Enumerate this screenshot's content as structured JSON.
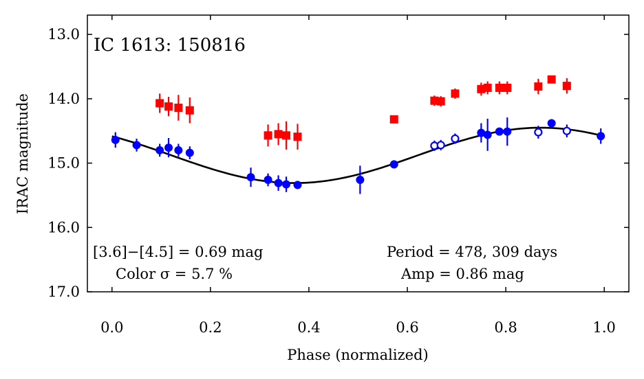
{
  "chart_data": {
    "type": "scatter",
    "title": "",
    "annotation_title": "IC 1613: 150816",
    "xlabel": "Phase (normalized)",
    "ylabel": "IRAC magnitude",
    "xlim": [
      -0.05,
      1.05
    ],
    "ylim": [
      17.0,
      12.7
    ],
    "y_inverted": true,
    "grid": false,
    "x_ticks": [
      0.0,
      0.2,
      0.4,
      0.6,
      0.8,
      1.0
    ],
    "x_tick_labels": [
      "0.0",
      "0.2",
      "0.4",
      "0.6",
      "0.8",
      "1.0"
    ],
    "y_ticks": [
      13.0,
      14.0,
      15.0,
      16.0,
      17.0
    ],
    "y_tick_labels": [
      "13.0",
      "14.0",
      "15.0",
      "16.0",
      "17.0"
    ],
    "annotations": {
      "color_line": "[3.6]−[4.5] = 0.69 mag",
      "color_sigma": "Color σ = 5.7 %",
      "period": "Period = 478, 309 days",
      "amp": "Amp = 0.86 mag"
    },
    "colors": {
      "red": "#ff0000",
      "blue": "#0000ff",
      "fit": "#000000"
    },
    "series": [
      {
        "marker": "square",
        "color": "#ff0000",
        "filled": true,
        "points": [
          {
            "x": 0.097,
            "y": 14.07,
            "err": 0.15
          },
          {
            "x": 0.115,
            "y": 14.12,
            "err": 0.15
          },
          {
            "x": 0.135,
            "y": 14.14,
            "err": 0.2
          },
          {
            "x": 0.158,
            "y": 14.18,
            "err": 0.2
          },
          {
            "x": 0.317,
            "y": 14.57,
            "err": 0.17
          },
          {
            "x": 0.338,
            "y": 14.55,
            "err": 0.17
          },
          {
            "x": 0.354,
            "y": 14.57,
            "err": 0.22
          },
          {
            "x": 0.377,
            "y": 14.59,
            "err": 0.2
          },
          {
            "x": 0.573,
            "y": 14.32,
            "err": 0.05
          },
          {
            "x": 0.655,
            "y": 14.03,
            "err": 0.08
          },
          {
            "x": 0.668,
            "y": 14.04,
            "err": 0.08
          },
          {
            "x": 0.697,
            "y": 13.92,
            "err": 0.08
          },
          {
            "x": 0.75,
            "y": 13.85,
            "err": 0.1
          },
          {
            "x": 0.763,
            "y": 13.83,
            "err": 0.1
          },
          {
            "x": 0.787,
            "y": 13.83,
            "err": 0.1
          },
          {
            "x": 0.803,
            "y": 13.83,
            "err": 0.1
          },
          {
            "x": 0.866,
            "y": 13.81,
            "err": 0.12
          },
          {
            "x": 0.893,
            "y": 13.7,
            "err": 0.04
          },
          {
            "x": 0.924,
            "y": 13.8,
            "err": 0.12
          }
        ]
      },
      {
        "marker": "circle",
        "color": "#0000ff",
        "filled": true,
        "points": [
          {
            "x": 0.007,
            "y": 14.64,
            "err": 0.12
          },
          {
            "x": 0.05,
            "y": 14.72,
            "err": 0.1
          },
          {
            "x": 0.097,
            "y": 14.8,
            "err": 0.1
          },
          {
            "x": 0.115,
            "y": 14.76,
            "err": 0.15
          },
          {
            "x": 0.135,
            "y": 14.8,
            "err": 0.1
          },
          {
            "x": 0.158,
            "y": 14.84,
            "err": 0.1
          },
          {
            "x": 0.282,
            "y": 15.22,
            "err": 0.15
          },
          {
            "x": 0.317,
            "y": 15.26,
            "err": 0.1
          },
          {
            "x": 0.338,
            "y": 15.31,
            "err": 0.12
          },
          {
            "x": 0.354,
            "y": 15.33,
            "err": 0.12
          },
          {
            "x": 0.377,
            "y": 15.34,
            "err": 0.05
          },
          {
            "x": 0.504,
            "y": 15.26,
            "err": 0.22
          },
          {
            "x": 0.573,
            "y": 15.02,
            "err": 0.05
          },
          {
            "x": 0.75,
            "y": 14.53,
            "err": 0.15
          },
          {
            "x": 0.763,
            "y": 14.56,
            "err": 0.25
          },
          {
            "x": 0.787,
            "y": 14.51,
            "err": 0.06
          },
          {
            "x": 0.803,
            "y": 14.51,
            "err": 0.22
          },
          {
            "x": 0.893,
            "y": 14.38,
            "err": 0.06
          },
          {
            "x": 0.993,
            "y": 14.58,
            "err": 0.12
          }
        ]
      },
      {
        "marker": "circle",
        "color": "#0000ff",
        "filled": false,
        "points": [
          {
            "x": 0.655,
            "y": 14.73,
            "err": 0.08
          },
          {
            "x": 0.668,
            "y": 14.72,
            "err": 0.08
          },
          {
            "x": 0.697,
            "y": 14.62,
            "err": 0.08
          },
          {
            "x": 0.866,
            "y": 14.52,
            "err": 0.1
          },
          {
            "x": 0.924,
            "y": 14.5,
            "err": 0.1
          }
        ]
      }
    ],
    "fit_curve": {
      "type": "sinusoid",
      "mean": 14.88,
      "amplitude": 0.43,
      "phase_of_max_brightness": 0.871,
      "color": "#000000"
    }
  }
}
